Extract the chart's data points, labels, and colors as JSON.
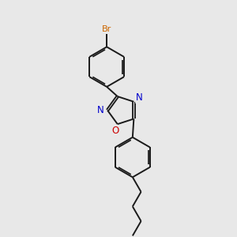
{
  "background_color": "#e8e8e8",
  "bond_color": "#1a1a1a",
  "atom_colors": {
    "Br": "#cc6600",
    "N": "#0000cc",
    "O": "#cc0000",
    "C": "#1a1a1a"
  },
  "figsize": [
    3.0,
    3.0
  ],
  "dpi": 100,
  "xlim": [
    0,
    10
  ],
  "ylim": [
    0,
    10
  ]
}
